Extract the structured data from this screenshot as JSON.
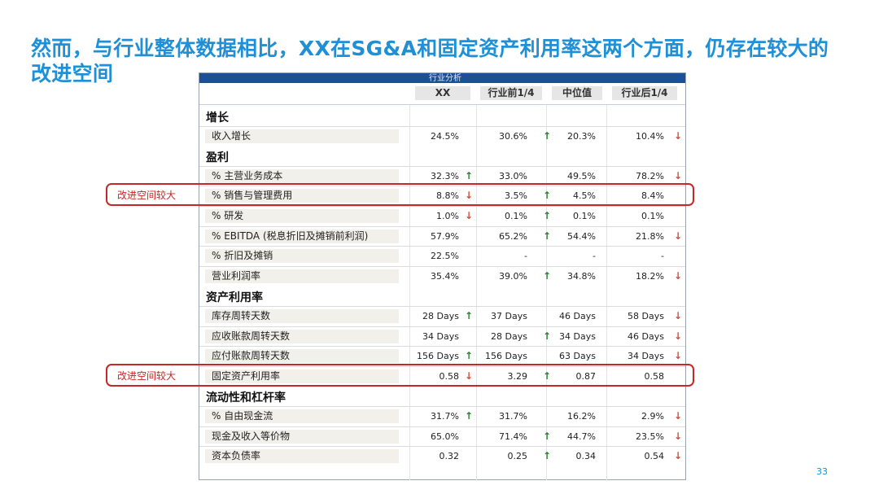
{
  "slide": {
    "title": "然而，与行业整体数据相比，XX在SG&A和固定资产利用率这两个方面，仍存在较大的改进空间",
    "page_number": "33"
  },
  "table": {
    "header_title": "行业分析",
    "columns": [
      "XX",
      "行业前1/4",
      "中位值",
      "行业后1/4"
    ],
    "sections": [
      {
        "name": "增长",
        "rows": [
          {
            "label": "收入增长",
            "values": [
              "24.5%",
              "30.6%",
              "20.3%",
              "10.4%"
            ],
            "arrows": [
              "",
              "up",
              "",
              "down"
            ]
          }
        ]
      },
      {
        "name": "盈利",
        "rows": [
          {
            "label": "% 主营业务成本",
            "values": [
              "32.3%",
              "33.0%",
              "49.5%",
              "78.2%"
            ],
            "arrows": [
              "up",
              "",
              "",
              "down"
            ]
          },
          {
            "label": "% 销售与管理费用",
            "values": [
              "8.8%",
              "3.5%",
              "4.5%",
              "8.4%"
            ],
            "arrows": [
              "down",
              "up",
              "",
              ""
            ]
          },
          {
            "label": "% 研发",
            "values": [
              "1.0%",
              "0.1%",
              "0.1%",
              "0.1%"
            ],
            "arrows": [
              "down",
              "up",
              "",
              ""
            ]
          },
          {
            "label": "% EBITDA (税息折旧及摊销前利润)",
            "values": [
              "57.9%",
              "65.2%",
              "54.4%",
              "21.8%"
            ],
            "arrows": [
              "",
              "up",
              "",
              "down"
            ]
          },
          {
            "label": "% 折旧及摊销",
            "values": [
              "22.5%",
              "-",
              "-",
              "-"
            ],
            "arrows": [
              "",
              "",
              "",
              ""
            ]
          },
          {
            "label": "营业利润率",
            "values": [
              "35.4%",
              "39.0%",
              "34.8%",
              "18.2%"
            ],
            "arrows": [
              "",
              "up",
              "",
              "down"
            ]
          }
        ]
      },
      {
        "name": "资产利用率",
        "rows": [
          {
            "label": "库存周转天数",
            "values": [
              "28 Days",
              "37 Days",
              "46 Days",
              "58 Days"
            ],
            "arrows": [
              "up",
              "",
              "",
              "down"
            ]
          },
          {
            "label": "应收账款周转天数",
            "values": [
              "34 Days",
              "28 Days",
              "34 Days",
              "46 Days"
            ],
            "arrows": [
              "",
              "up",
              "",
              "down"
            ]
          },
          {
            "label": "应付账款周转天数",
            "values": [
              "156 Days",
              "156 Days",
              "63 Days",
              "34 Days"
            ],
            "arrows": [
              "up",
              "",
              "",
              "down"
            ]
          },
          {
            "label": "固定资产利用率",
            "values": [
              "0.58",
              "3.29",
              "0.87",
              "0.58"
            ],
            "arrows": [
              "down",
              "up",
              "",
              ""
            ]
          }
        ]
      },
      {
        "name": "流动性和杠杆率",
        "rows": [
          {
            "label": "% 自由现金流",
            "values": [
              "31.7%",
              "31.7%",
              "16.2%",
              "2.9%"
            ],
            "arrows": [
              "up",
              "",
              "",
              "down"
            ]
          },
          {
            "label": "现金及收入等价物",
            "values": [
              "65.0%",
              "71.4%",
              "44.7%",
              "23.5%"
            ],
            "arrows": [
              "",
              "up",
              "",
              "down"
            ]
          },
          {
            "label": "资本负债率",
            "values": [
              "0.32",
              "0.25",
              "0.34",
              "0.54"
            ],
            "arrows": [
              "",
              "up",
              "",
              "down"
            ]
          }
        ]
      }
    ]
  },
  "callouts": [
    {
      "text": "改进空间较大",
      "row_label": "% 销售与管理费用"
    },
    {
      "text": "改进空间较大",
      "row_label": "固定资产利用率"
    }
  ],
  "colors": {
    "title": "#1f8fd6",
    "header_bar": "#1b4f96",
    "up_arrow": "#2e7d32",
    "down_arrow": "#d84b3a",
    "highlight": "#c62828"
  },
  "icons": {
    "up": "up-arrow-icon",
    "down": "down-arrow-icon"
  }
}
